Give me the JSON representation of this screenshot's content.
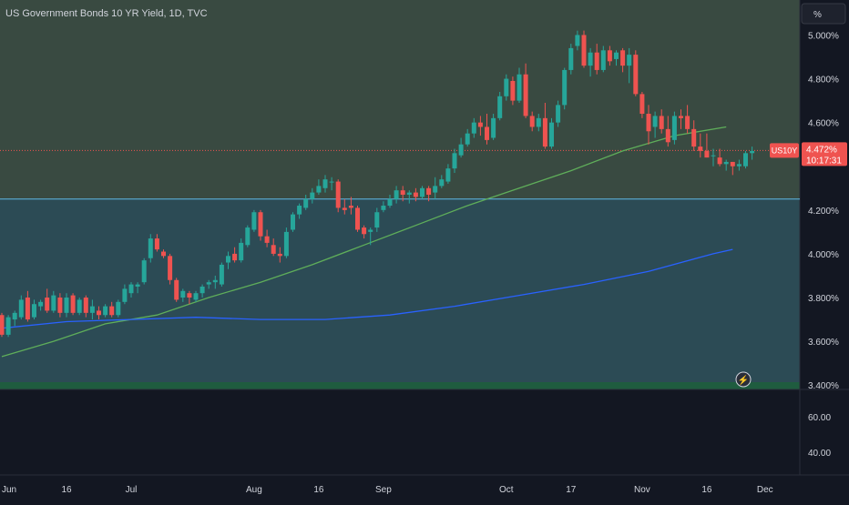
{
  "chart_data": {
    "type": "candlestick",
    "title": "US Government Bonds 10 YR Yield, 1D, TVC",
    "unit_button": "%",
    "symbol": "US10Y",
    "last_price_label": "4.472%",
    "countdown": "10:17:31",
    "last_price": 4.472,
    "ylim": [
      3.4,
      5.16
    ],
    "y_ticks": [
      {
        "value": 5.0,
        "label": "5.000%"
      },
      {
        "value": 4.8,
        "label": "4.800%"
      },
      {
        "value": 4.6,
        "label": "4.600%"
      },
      {
        "value": 4.2,
        "label": "4.200%"
      },
      {
        "value": 4.0,
        "label": "4.000%"
      },
      {
        "value": 3.8,
        "label": "3.800%"
      },
      {
        "value": 3.6,
        "label": "3.600%"
      },
      {
        "value": 3.4,
        "label": "3.400%"
      }
    ],
    "x_ticks": [
      "Jun",
      "16",
      "Jul",
      "Aug",
      "16",
      "Sep",
      "Oct",
      "17",
      "Nov",
      "16",
      "Dec"
    ],
    "horizontal_level": 4.25,
    "zone_colors": {
      "upper": "#394a41",
      "lower": "#2c4b55",
      "base": "#131722"
    },
    "sub_pane_ticks": [
      "60.00",
      "40.00"
    ],
    "candles": [
      {
        "o": 3.72,
        "h": 3.73,
        "l": 3.62,
        "c": 3.63
      },
      {
        "o": 3.63,
        "h": 3.72,
        "l": 3.62,
        "c": 3.71
      },
      {
        "o": 3.7,
        "h": 3.74,
        "l": 3.67,
        "c": 3.73
      },
      {
        "o": 3.71,
        "h": 3.81,
        "l": 3.7,
        "c": 3.79
      },
      {
        "o": 3.8,
        "h": 3.83,
        "l": 3.69,
        "c": 3.7
      },
      {
        "o": 3.71,
        "h": 3.79,
        "l": 3.7,
        "c": 3.77
      },
      {
        "o": 3.76,
        "h": 3.79,
        "l": 3.74,
        "c": 3.78
      },
      {
        "o": 3.8,
        "h": 3.84,
        "l": 3.73,
        "c": 3.74
      },
      {
        "o": 3.74,
        "h": 3.83,
        "l": 3.73,
        "c": 3.81
      },
      {
        "o": 3.8,
        "h": 3.82,
        "l": 3.71,
        "c": 3.73
      },
      {
        "o": 3.73,
        "h": 3.82,
        "l": 3.71,
        "c": 3.8
      },
      {
        "o": 3.81,
        "h": 3.82,
        "l": 3.72,
        "c": 3.73
      },
      {
        "o": 3.73,
        "h": 3.8,
        "l": 3.72,
        "c": 3.79
      },
      {
        "o": 3.8,
        "h": 3.81,
        "l": 3.71,
        "c": 3.73
      },
      {
        "o": 3.73,
        "h": 3.79,
        "l": 3.7,
        "c": 3.76
      },
      {
        "o": 3.74,
        "h": 3.76,
        "l": 3.7,
        "c": 3.72
      },
      {
        "o": 3.72,
        "h": 3.77,
        "l": 3.71,
        "c": 3.76
      },
      {
        "o": 3.76,
        "h": 3.78,
        "l": 3.71,
        "c": 3.72
      },
      {
        "o": 3.72,
        "h": 3.79,
        "l": 3.71,
        "c": 3.78
      },
      {
        "o": 3.78,
        "h": 3.86,
        "l": 3.77,
        "c": 3.84
      },
      {
        "o": 3.82,
        "h": 3.87,
        "l": 3.8,
        "c": 3.86
      },
      {
        "o": 3.85,
        "h": 3.87,
        "l": 3.82,
        "c": 3.86
      },
      {
        "o": 3.87,
        "h": 3.98,
        "l": 3.86,
        "c": 3.97
      },
      {
        "o": 3.98,
        "h": 4.09,
        "l": 3.96,
        "c": 4.07
      },
      {
        "o": 4.07,
        "h": 4.09,
        "l": 4.01,
        "c": 4.02
      },
      {
        "o": 4.01,
        "h": 4.02,
        "l": 3.98,
        "c": 3.99
      },
      {
        "o": 3.99,
        "h": 4.0,
        "l": 3.86,
        "c": 3.88
      },
      {
        "o": 3.88,
        "h": 3.89,
        "l": 3.78,
        "c": 3.79
      },
      {
        "o": 3.8,
        "h": 3.84,
        "l": 3.78,
        "c": 3.83
      },
      {
        "o": 3.82,
        "h": 3.83,
        "l": 3.77,
        "c": 3.8
      },
      {
        "o": 3.79,
        "h": 3.83,
        "l": 3.78,
        "c": 3.82
      },
      {
        "o": 3.82,
        "h": 3.86,
        "l": 3.8,
        "c": 3.85
      },
      {
        "o": 3.86,
        "h": 3.88,
        "l": 3.84,
        "c": 3.87
      },
      {
        "o": 3.87,
        "h": 3.9,
        "l": 3.84,
        "c": 3.88
      },
      {
        "o": 3.86,
        "h": 3.96,
        "l": 3.85,
        "c": 3.95
      },
      {
        "o": 3.96,
        "h": 4.01,
        "l": 3.93,
        "c": 3.99
      },
      {
        "o": 4.0,
        "h": 4.03,
        "l": 3.96,
        "c": 3.97
      },
      {
        "o": 3.97,
        "h": 4.07,
        "l": 3.96,
        "c": 4.05
      },
      {
        "o": 4.04,
        "h": 4.13,
        "l": 4.03,
        "c": 4.12
      },
      {
        "o": 4.11,
        "h": 4.2,
        "l": 4.1,
        "c": 4.19
      },
      {
        "o": 4.19,
        "h": 4.2,
        "l": 4.06,
        "c": 4.08
      },
      {
        "o": 4.08,
        "h": 4.11,
        "l": 4.03,
        "c": 4.05
      },
      {
        "o": 4.04,
        "h": 4.07,
        "l": 3.99,
        "c": 4.0
      },
      {
        "o": 4.0,
        "h": 4.03,
        "l": 3.96,
        "c": 3.99
      },
      {
        "o": 3.99,
        "h": 4.12,
        "l": 3.98,
        "c": 4.1
      },
      {
        "o": 4.11,
        "h": 4.19,
        "l": 4.1,
        "c": 4.18
      },
      {
        "o": 4.18,
        "h": 4.23,
        "l": 4.16,
        "c": 4.22
      },
      {
        "o": 4.21,
        "h": 4.27,
        "l": 4.2,
        "c": 4.25
      },
      {
        "o": 4.25,
        "h": 4.3,
        "l": 4.23,
        "c": 4.28
      },
      {
        "o": 4.28,
        "h": 4.34,
        "l": 4.27,
        "c": 4.31
      },
      {
        "o": 4.3,
        "h": 4.36,
        "l": 4.28,
        "c": 4.34
      },
      {
        "o": 4.33,
        "h": 4.35,
        "l": 4.29,
        "c": 4.33
      },
      {
        "o": 4.33,
        "h": 4.34,
        "l": 4.19,
        "c": 4.21
      },
      {
        "o": 4.21,
        "h": 4.25,
        "l": 4.18,
        "c": 4.2
      },
      {
        "o": 4.22,
        "h": 4.26,
        "l": 4.18,
        "c": 4.21
      },
      {
        "o": 4.21,
        "h": 4.22,
        "l": 4.1,
        "c": 4.11
      },
      {
        "o": 4.12,
        "h": 4.13,
        "l": 4.07,
        "c": 4.09
      },
      {
        "o": 4.1,
        "h": 4.12,
        "l": 4.04,
        "c": 4.11
      },
      {
        "o": 4.12,
        "h": 4.21,
        "l": 4.1,
        "c": 4.19
      },
      {
        "o": 4.2,
        "h": 4.24,
        "l": 4.19,
        "c": 4.22
      },
      {
        "o": 4.22,
        "h": 4.27,
        "l": 4.21,
        "c": 4.25
      },
      {
        "o": 4.25,
        "h": 4.31,
        "l": 4.23,
        "c": 4.29
      },
      {
        "o": 4.29,
        "h": 4.31,
        "l": 4.24,
        "c": 4.27
      },
      {
        "o": 4.27,
        "h": 4.29,
        "l": 4.23,
        "c": 4.28
      },
      {
        "o": 4.28,
        "h": 4.3,
        "l": 4.24,
        "c": 4.26
      },
      {
        "o": 4.26,
        "h": 4.31,
        "l": 4.25,
        "c": 4.3
      },
      {
        "o": 4.3,
        "h": 4.31,
        "l": 4.24,
        "c": 4.27
      },
      {
        "o": 4.28,
        "h": 4.35,
        "l": 4.25,
        "c": 4.31
      },
      {
        "o": 4.31,
        "h": 4.36,
        "l": 4.3,
        "c": 4.34
      },
      {
        "o": 4.33,
        "h": 4.41,
        "l": 4.32,
        "c": 4.39
      },
      {
        "o": 4.39,
        "h": 4.48,
        "l": 4.37,
        "c": 4.46
      },
      {
        "o": 4.45,
        "h": 4.53,
        "l": 4.44,
        "c": 4.5
      },
      {
        "o": 4.5,
        "h": 4.57,
        "l": 4.49,
        "c": 4.55
      },
      {
        "o": 4.55,
        "h": 4.62,
        "l": 4.53,
        "c": 4.6
      },
      {
        "o": 4.6,
        "h": 4.63,
        "l": 4.54,
        "c": 4.58
      },
      {
        "o": 4.58,
        "h": 4.64,
        "l": 4.5,
        "c": 4.52
      },
      {
        "o": 4.53,
        "h": 4.64,
        "l": 4.52,
        "c": 4.62
      },
      {
        "o": 4.62,
        "h": 4.74,
        "l": 4.61,
        "c": 4.72
      },
      {
        "o": 4.72,
        "h": 4.82,
        "l": 4.7,
        "c": 4.8
      },
      {
        "o": 4.79,
        "h": 4.81,
        "l": 4.68,
        "c": 4.7
      },
      {
        "o": 4.7,
        "h": 4.85,
        "l": 4.69,
        "c": 4.82
      },
      {
        "o": 4.82,
        "h": 4.87,
        "l": 4.62,
        "c": 4.63
      },
      {
        "o": 4.63,
        "h": 4.65,
        "l": 4.56,
        "c": 4.58
      },
      {
        "o": 4.58,
        "h": 4.64,
        "l": 4.56,
        "c": 4.62
      },
      {
        "o": 4.62,
        "h": 4.69,
        "l": 4.48,
        "c": 4.49
      },
      {
        "o": 4.49,
        "h": 4.62,
        "l": 4.48,
        "c": 4.6
      },
      {
        "o": 4.6,
        "h": 4.7,
        "l": 4.58,
        "c": 4.68
      },
      {
        "o": 4.68,
        "h": 4.85,
        "l": 4.66,
        "c": 4.84
      },
      {
        "o": 4.84,
        "h": 4.96,
        "l": 4.82,
        "c": 4.94
      },
      {
        "o": 4.95,
        "h": 5.02,
        "l": 4.93,
        "c": 5.0
      },
      {
        "o": 5.0,
        "h": 5.02,
        "l": 4.85,
        "c": 4.86
      },
      {
        "o": 4.86,
        "h": 4.94,
        "l": 4.81,
        "c": 4.92
      },
      {
        "o": 4.92,
        "h": 4.96,
        "l": 4.82,
        "c": 4.84
      },
      {
        "o": 4.84,
        "h": 4.95,
        "l": 4.83,
        "c": 4.93
      },
      {
        "o": 4.93,
        "h": 4.95,
        "l": 4.86,
        "c": 4.88
      },
      {
        "o": 4.89,
        "h": 4.93,
        "l": 4.86,
        "c": 4.92
      },
      {
        "o": 4.93,
        "h": 4.94,
        "l": 4.83,
        "c": 4.86
      },
      {
        "o": 4.86,
        "h": 4.94,
        "l": 4.78,
        "c": 4.91
      },
      {
        "o": 4.91,
        "h": 4.93,
        "l": 4.72,
        "c": 4.73
      },
      {
        "o": 4.73,
        "h": 4.74,
        "l": 4.62,
        "c": 4.64
      },
      {
        "o": 4.64,
        "h": 4.68,
        "l": 4.5,
        "c": 4.56
      },
      {
        "o": 4.58,
        "h": 4.65,
        "l": 4.53,
        "c": 4.63
      },
      {
        "o": 4.63,
        "h": 4.66,
        "l": 4.55,
        "c": 4.57
      },
      {
        "o": 4.57,
        "h": 4.63,
        "l": 4.49,
        "c": 4.51
      },
      {
        "o": 4.52,
        "h": 4.65,
        "l": 4.5,
        "c": 4.63
      },
      {
        "o": 4.63,
        "h": 4.66,
        "l": 4.57,
        "c": 4.62
      },
      {
        "o": 4.63,
        "h": 4.68,
        "l": 4.55,
        "c": 4.57
      },
      {
        "o": 4.57,
        "h": 4.61,
        "l": 4.47,
        "c": 4.49
      },
      {
        "o": 4.49,
        "h": 4.55,
        "l": 4.44,
        "c": 4.47
      },
      {
        "o": 4.47,
        "h": 4.55,
        "l": 4.44,
        "c": 4.44
      },
      {
        "o": 4.45,
        "h": 4.48,
        "l": 4.4,
        "c": 4.45
      },
      {
        "o": 4.44,
        "h": 4.48,
        "l": 4.4,
        "c": 4.41
      },
      {
        "o": 4.41,
        "h": 4.43,
        "l": 4.38,
        "c": 4.42
      },
      {
        "o": 4.42,
        "h": 4.42,
        "l": 4.36,
        "c": 4.4
      },
      {
        "o": 4.4,
        "h": 4.43,
        "l": 4.38,
        "c": 4.41
      },
      {
        "o": 4.4,
        "h": 4.47,
        "l": 4.39,
        "c": 4.46
      },
      {
        "o": 4.46,
        "h": 4.49,
        "l": 4.43,
        "c": 4.47
      }
    ],
    "series": [
      {
        "name": "",
        "color": "#5fae5a",
        "x": [
          0,
          8,
          16,
          24,
          32,
          40,
          48,
          56,
          64,
          72,
          80,
          88,
          96,
          104,
          112
        ],
        "values": [
          3.53,
          3.6,
          3.68,
          3.72,
          3.8,
          3.87,
          3.95,
          4.04,
          4.13,
          4.22,
          4.3,
          4.38,
          4.47,
          4.54,
          4.58
        ]
      },
      {
        "name": "",
        "color": "#2962ff",
        "x": [
          0,
          10,
          20,
          30,
          40,
          50,
          60,
          70,
          80,
          90,
          100,
          110,
          113
        ],
        "values": [
          3.66,
          3.69,
          3.7,
          3.71,
          3.7,
          3.7,
          3.72,
          3.76,
          3.81,
          3.86,
          3.92,
          4.0,
          4.02
        ]
      }
    ]
  }
}
